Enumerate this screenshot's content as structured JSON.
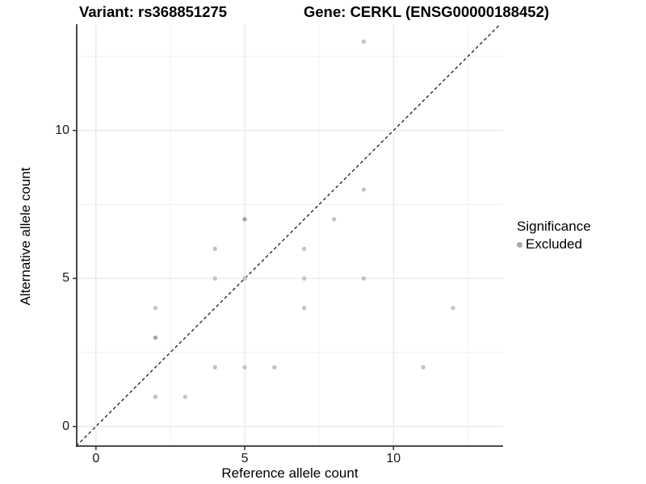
{
  "header": {
    "variant_title": "Variant: rs368851275",
    "gene_title": "Gene: CERKL (ENSG00000188452)"
  },
  "chart_data": {
    "type": "scatter",
    "xlabel": "Reference allele count",
    "ylabel": "Alternative allele count",
    "xlim": [
      -0.65,
      13.68
    ],
    "ylim": [
      -0.66,
      13.6
    ],
    "x_major_ticks": [
      0,
      5,
      10
    ],
    "y_major_ticks": [
      0,
      5,
      10
    ],
    "x_tick_labels": [
      "0",
      "5",
      "10"
    ],
    "y_tick_labels": [
      "0",
      "5",
      "10"
    ],
    "x_minor_ticks": [
      2.5,
      7.5,
      12.5
    ],
    "y_minor_ticks": [
      2.5,
      7.5,
      12.5
    ],
    "grid": true,
    "identity_line": {
      "equation": "y = x",
      "style": "dashed",
      "color": "#1a1a1a"
    },
    "points": [
      {
        "x": 2,
        "y": 1,
        "n": 1
      },
      {
        "x": 2,
        "y": 3,
        "n": 2
      },
      {
        "x": 2,
        "y": 4,
        "n": 1
      },
      {
        "x": 3,
        "y": 1,
        "n": 1
      },
      {
        "x": 4,
        "y": 2,
        "n": 1
      },
      {
        "x": 4,
        "y": 5,
        "n": 1
      },
      {
        "x": 4,
        "y": 6,
        "n": 1
      },
      {
        "x": 5,
        "y": 2,
        "n": 1
      },
      {
        "x": 5,
        "y": 5,
        "n": 1
      },
      {
        "x": 5,
        "y": 7,
        "n": 2
      },
      {
        "x": 6,
        "y": 2,
        "n": 1
      },
      {
        "x": 7,
        "y": 4,
        "n": 1
      },
      {
        "x": 7,
        "y": 5,
        "n": 1
      },
      {
        "x": 7,
        "y": 6,
        "n": 1
      },
      {
        "x": 8,
        "y": 7,
        "n": 1
      },
      {
        "x": 9,
        "y": 5,
        "n": 1
      },
      {
        "x": 9,
        "y": 8,
        "n": 1
      },
      {
        "x": 9,
        "y": 13,
        "n": 1
      },
      {
        "x": 11,
        "y": 2,
        "n": 1
      },
      {
        "x": 12,
        "y": 4,
        "n": 1
      }
    ],
    "point_color": "#c3c3c3",
    "point_color_overlap": "#a4a4a4",
    "grid_major_color": "#e5e5e5",
    "grid_minor_color": "#f2f2f2",
    "axis_color": "#333333",
    "legend": {
      "title": "Significance",
      "items": [
        {
          "label": "Excluded",
          "color": "#a9a9a9"
        }
      ]
    }
  }
}
